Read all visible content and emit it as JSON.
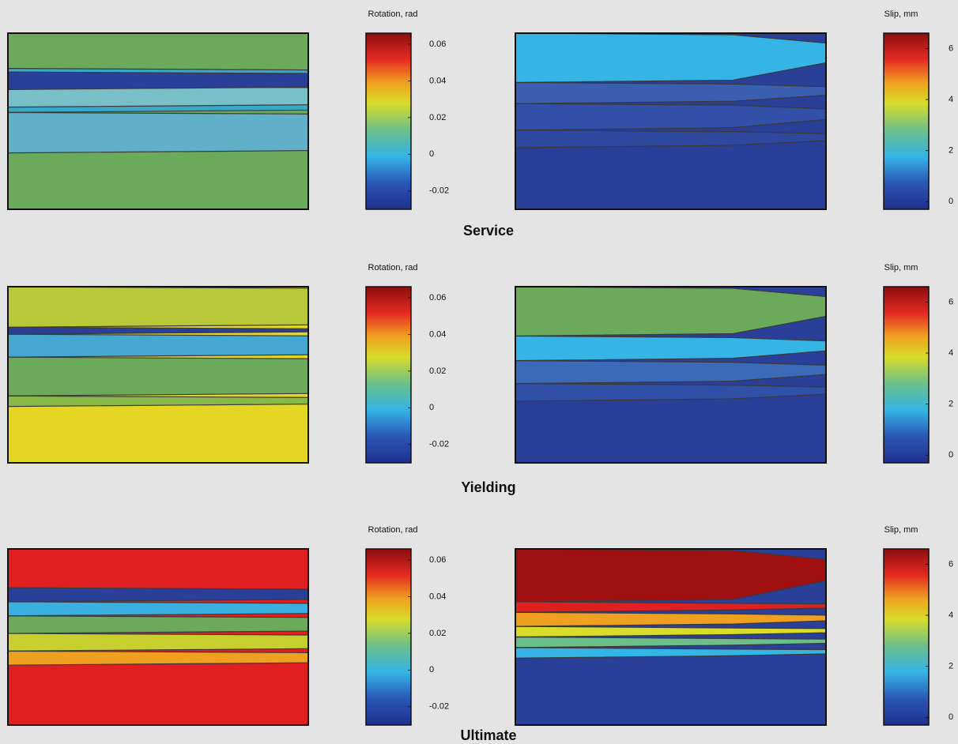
{
  "figure": {
    "rows": [
      {
        "label": "Service",
        "rotation": {
          "title": "Rotation, rad",
          "lim": [
            -0.03,
            0.066
          ],
          "ticks": [
            0.06,
            0.04,
            0.02,
            0,
            -0.02
          ]
        },
        "slip": {
          "title": "Slip, mm",
          "lim": [
            -0.3,
            6.6
          ],
          "ticks": [
            6,
            4,
            2,
            0
          ]
        }
      },
      {
        "label": "Yielding",
        "rotation": {
          "title": "Rotation, rad",
          "lim": [
            -0.03,
            0.066
          ],
          "ticks": [
            0.06,
            0.04,
            0.02,
            0,
            -0.02
          ]
        },
        "slip": {
          "title": "Slip, mm",
          "lim": [
            -0.3,
            6.6
          ],
          "ticks": [
            6,
            4,
            2,
            0
          ]
        }
      },
      {
        "label": "Ultimate",
        "rotation": {
          "title": "Rotation, rad",
          "lim": [
            -0.03,
            0.066
          ],
          "ticks": [
            0.06,
            0.04,
            0.02,
            0,
            -0.02
          ]
        },
        "slip": {
          "title": "Slip, mm",
          "lim": [
            -0.3,
            6.6
          ],
          "ticks": [
            6,
            4,
            2,
            0
          ]
        }
      }
    ]
  }
}
